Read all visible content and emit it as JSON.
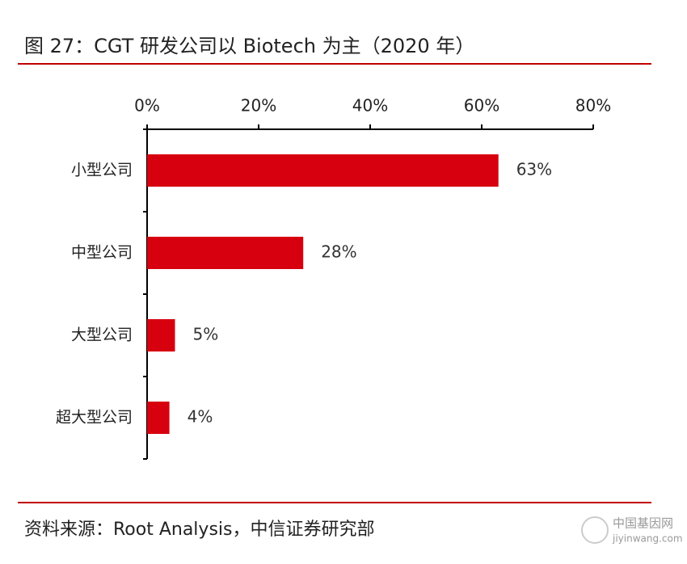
{
  "title": "图 27：CGT 研发公司以 Biotech 为主（2020 年）",
  "source": "资料来源：Root Analysis，中信证券研究部",
  "watermark": {
    "name": "中国基因网",
    "url": "jiyinwang.com"
  },
  "chart_data": {
    "type": "bar",
    "orientation": "horizontal",
    "categories": [
      "小型公司",
      "中型公司",
      "大型公司",
      "超大型公司"
    ],
    "values": [
      63,
      28,
      5,
      4
    ],
    "value_labels": [
      "63%",
      "28%",
      "5%",
      "4%"
    ],
    "color": "#d7000f",
    "xlim": [
      0,
      80
    ],
    "xticks": [
      {
        "value": 0,
        "label": "0%"
      },
      {
        "value": 20,
        "label": "20%"
      },
      {
        "value": 40,
        "label": "40%"
      },
      {
        "value": 60,
        "label": "60%"
      },
      {
        "value": 80,
        "label": "80%"
      }
    ]
  }
}
